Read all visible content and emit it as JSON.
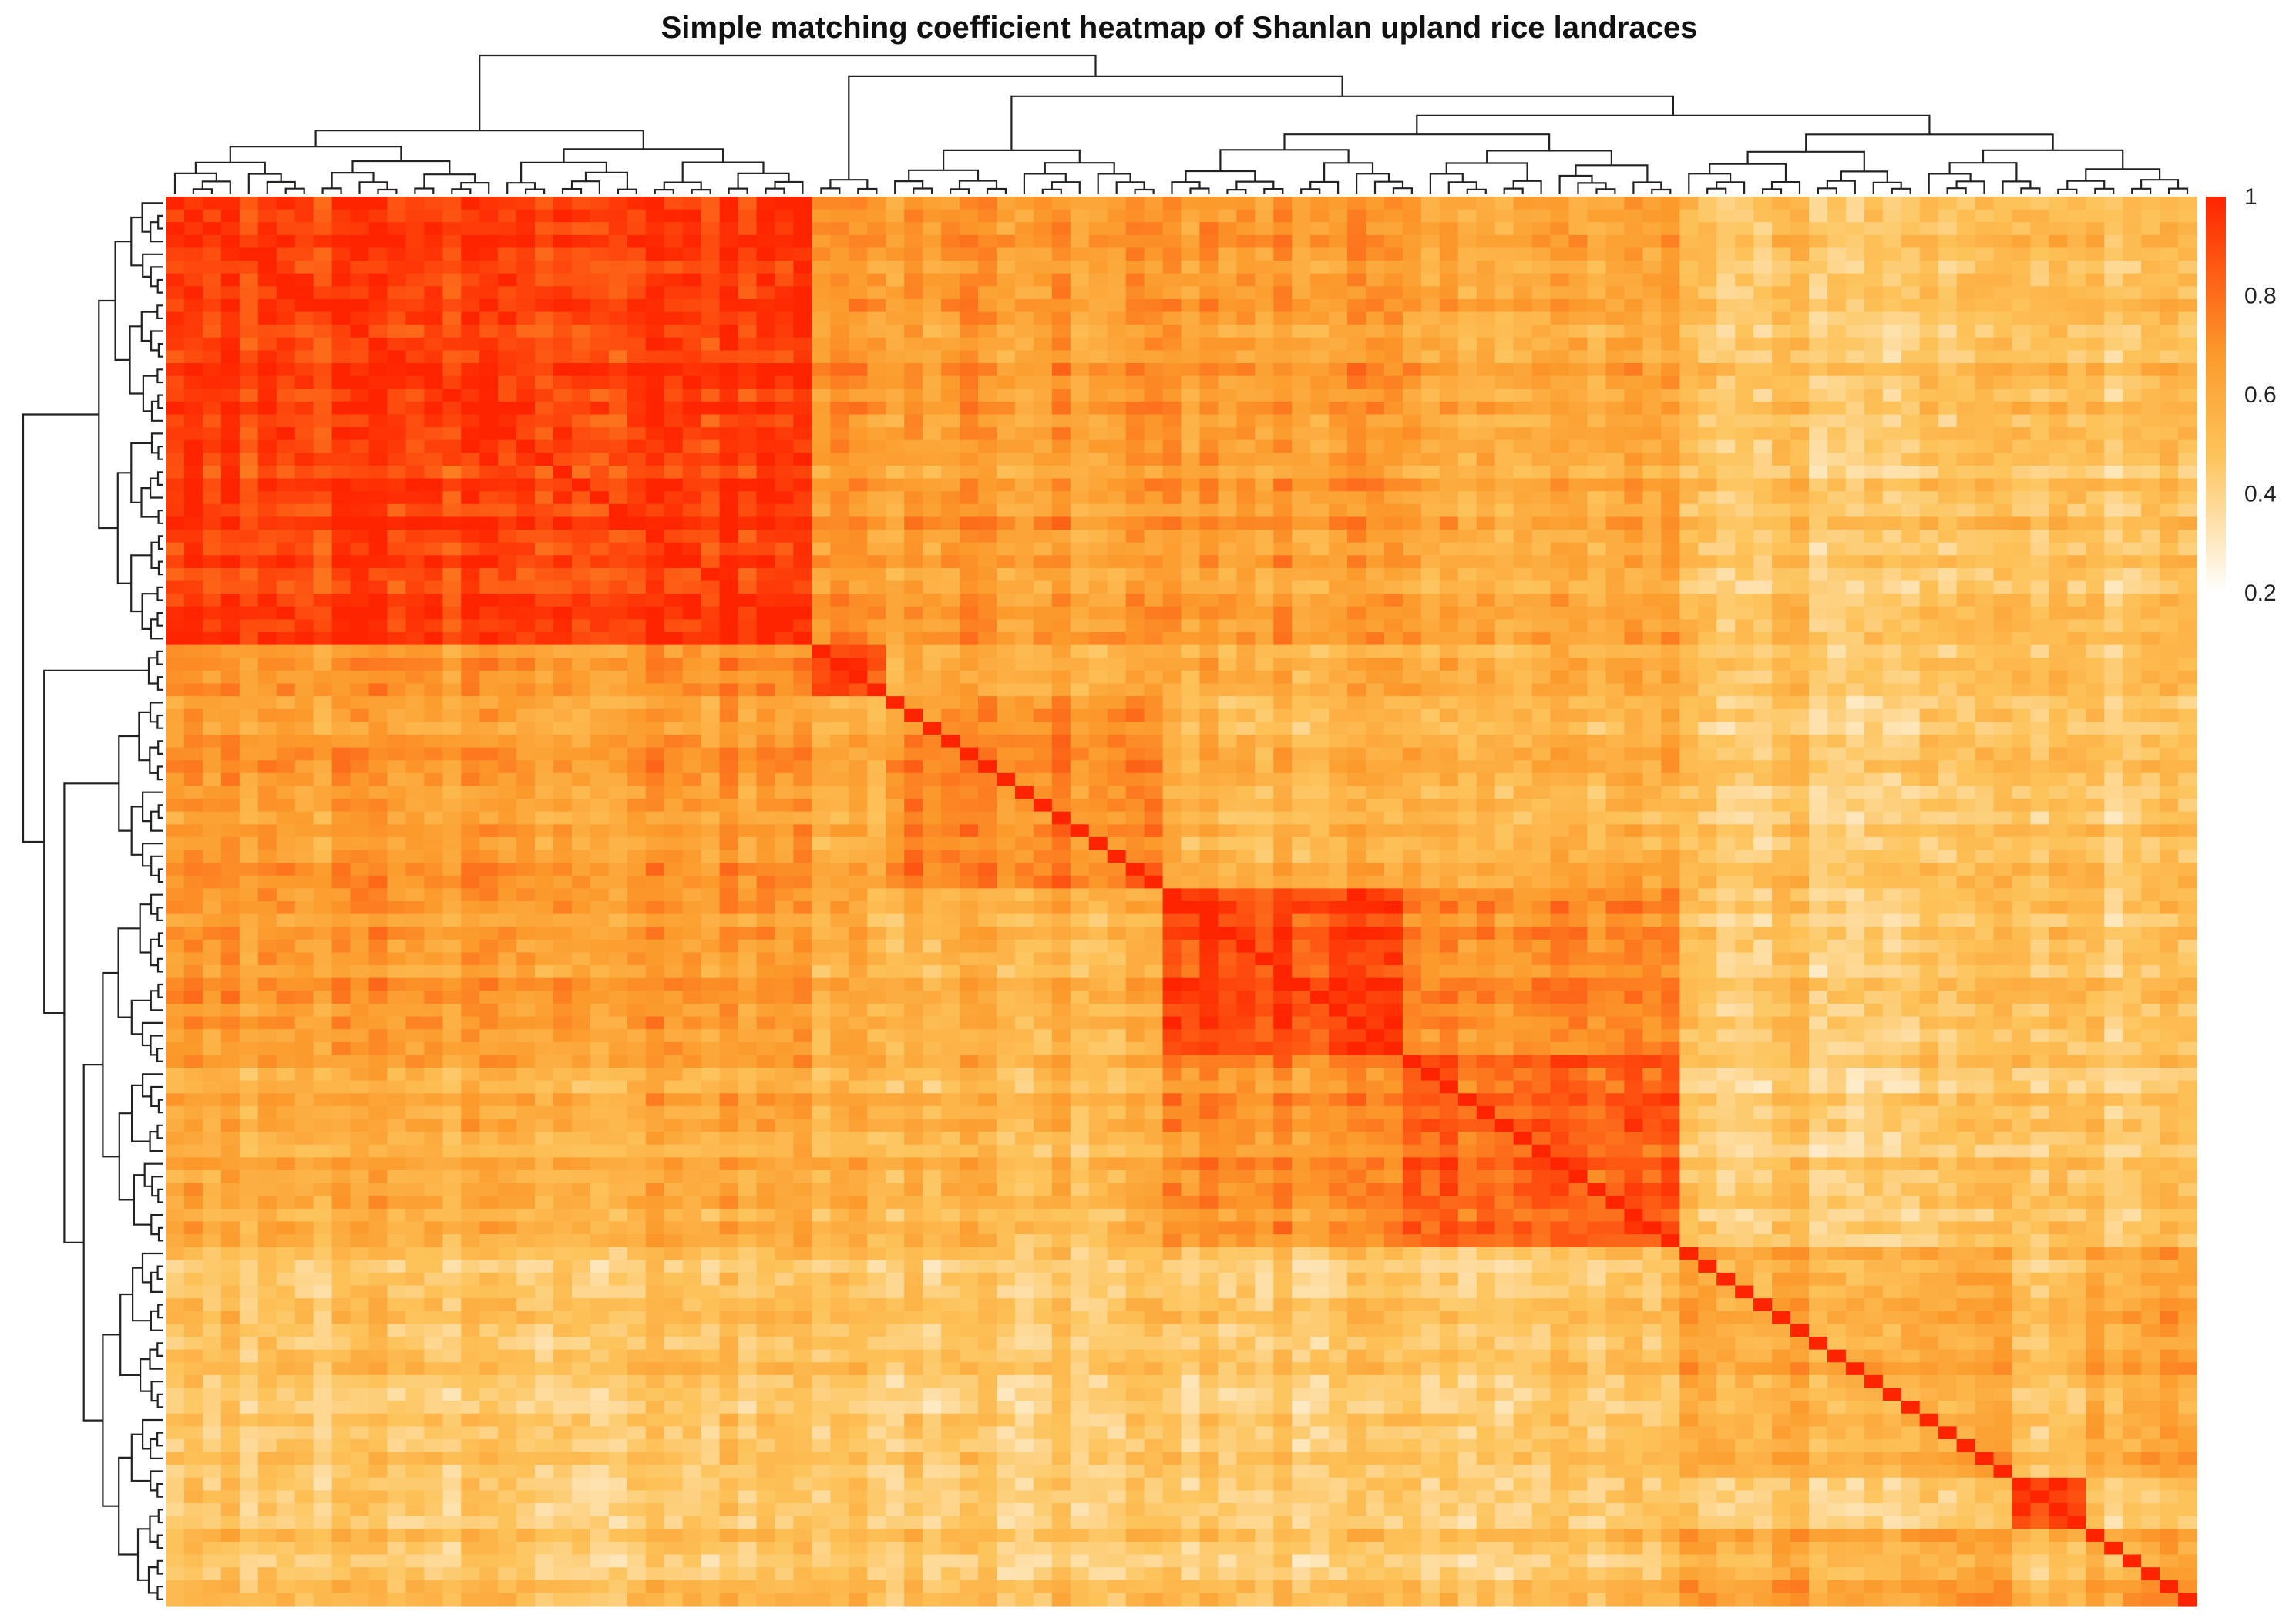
{
  "chart_data": {
    "type": "heatmap",
    "title": "Simple matching coefficient heatmap of Shanlan upland rice landraces",
    "xlabel": "",
    "ylabel": "",
    "value_range": [
      0.2,
      1
    ],
    "colorbar_ticks": [
      "1",
      "0.8",
      "0.6",
      "0.4",
      "0.2"
    ],
    "colorbar_tick_values": [
      1,
      0.8,
      0.6,
      0.4,
      0.2
    ],
    "colors": [
      "#ffffff",
      "#fdbd4a",
      "#fc8d2a",
      "#ff2400"
    ],
    "n_rows": 110,
    "n_cols": 110,
    "dendrograms": [
      "row",
      "column"
    ],
    "cluster_blocks": [
      {
        "from": 1,
        "to": 35,
        "within": 0.93
      },
      {
        "from": 36,
        "to": 39,
        "within": 0.85
      },
      {
        "from": 40,
        "to": 54,
        "within": 0.72
      },
      {
        "from": 55,
        "to": 67,
        "within": 0.9
      },
      {
        "from": 68,
        "to": 82,
        "within": 0.83
      },
      {
        "from": 83,
        "to": 110,
        "within": 0.6
      },
      {
        "from": 101,
        "to": 104,
        "within": 0.93
      }
    ],
    "between_block_value": {
      "upper_cluster_rows_to_right_columns": 0.48,
      "lower_rows_to_left_columns": 0.46
    },
    "diagonal_value": 1
  }
}
